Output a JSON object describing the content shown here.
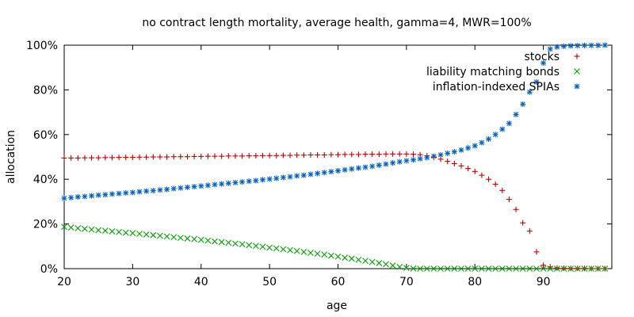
{
  "chart_data": {
    "type": "scatter",
    "title": "no contract length mortality, average health, gamma=4, MWR=100%",
    "xlabel": "age",
    "ylabel": "allocation",
    "xlim": [
      20,
      100
    ],
    "ylim": [
      0,
      100
    ],
    "x_ticks": [
      "20",
      "30",
      "40",
      "50",
      "60",
      "70",
      "80",
      "90"
    ],
    "y_ticks": [
      "0%",
      "20%",
      "40%",
      "60%",
      "80%",
      "100%"
    ],
    "grid": false,
    "legend_position": "top-right",
    "x": [
      20,
      21,
      22,
      23,
      24,
      25,
      26,
      27,
      28,
      29,
      30,
      31,
      32,
      33,
      34,
      35,
      36,
      37,
      38,
      39,
      40,
      41,
      42,
      43,
      44,
      45,
      46,
      47,
      48,
      49,
      50,
      51,
      52,
      53,
      54,
      55,
      56,
      57,
      58,
      59,
      60,
      61,
      62,
      63,
      64,
      65,
      66,
      67,
      68,
      69,
      70,
      71,
      72,
      73,
      74,
      75,
      76,
      77,
      78,
      79,
      80,
      81,
      82,
      83,
      84,
      85,
      86,
      87,
      88,
      89,
      90,
      91,
      92,
      93,
      94,
      95,
      96,
      97,
      98,
      99
    ],
    "series": [
      {
        "name": "stocks",
        "color": "#c00000",
        "marker": "plus",
        "values": [
          49.5,
          49.5,
          49.5,
          49.6,
          49.6,
          49.6,
          49.7,
          49.7,
          49.8,
          49.8,
          49.8,
          49.9,
          49.9,
          50.0,
          50.0,
          50.0,
          50.1,
          50.1,
          50.1,
          50.2,
          50.2,
          50.3,
          50.3,
          50.3,
          50.4,
          50.4,
          50.4,
          50.5,
          50.5,
          50.6,
          50.6,
          50.6,
          50.7,
          50.7,
          50.8,
          50.8,
          50.9,
          50.9,
          50.9,
          51.0,
          51.0,
          51.1,
          51.1,
          51.1,
          51.2,
          51.2,
          51.2,
          51.3,
          51.3,
          51.3,
          51.3,
          51.2,
          51.0,
          50.5,
          49.8,
          49.0,
          48.0,
          47.0,
          46.0,
          44.8,
          43.5,
          41.8,
          40.0,
          37.8,
          35.0,
          31.0,
          26.5,
          20.5,
          16.8,
          7.5,
          1.5,
          0.8,
          0.3,
          0.2,
          0.1,
          0.1,
          0.1,
          0,
          0,
          0
        ]
      },
      {
        "name": "liability matching bonds",
        "color": "#00a000",
        "marker": "cross",
        "values": [
          18.7,
          18.4,
          18.1,
          17.8,
          17.5,
          17.2,
          17.0,
          16.7,
          16.4,
          16.1,
          15.9,
          15.6,
          15.3,
          15.0,
          14.7,
          14.4,
          14.1,
          13.8,
          13.5,
          13.2,
          12.9,
          12.6,
          12.2,
          11.9,
          11.6,
          11.2,
          10.9,
          10.5,
          10.2,
          9.8,
          9.4,
          9.1,
          8.7,
          8.3,
          7.9,
          7.5,
          7.1,
          6.7,
          6.3,
          5.8,
          5.4,
          4.9,
          4.5,
          4.0,
          3.5,
          3.0,
          2.5,
          2.0,
          1.4,
          0.8,
          0.3,
          0.1,
          0,
          0,
          0,
          0,
          0,
          0,
          0,
          0,
          0,
          0,
          0,
          0,
          0,
          0,
          0,
          0,
          0,
          0,
          0,
          0,
          0,
          0,
          0,
          0,
          0,
          0,
          0,
          0
        ]
      },
      {
        "name": "inflation-indexed SPIAs",
        "color": "#0060c0",
        "marker": "star",
        "values": [
          31.5,
          31.8,
          32.1,
          32.3,
          32.6,
          32.9,
          33.1,
          33.4,
          33.6,
          33.9,
          34.1,
          34.4,
          34.7,
          34.9,
          35.2,
          35.5,
          35.8,
          36.1,
          36.4,
          36.7,
          37.0,
          37.3,
          37.6,
          37.9,
          38.2,
          38.5,
          38.8,
          39.1,
          39.4,
          39.8,
          40.1,
          40.4,
          40.8,
          41.1,
          41.5,
          41.8,
          42.2,
          42.6,
          43.0,
          43.4,
          43.8,
          44.2,
          44.6,
          45.0,
          45.4,
          45.8,
          46.3,
          46.8,
          47.3,
          47.8,
          48.3,
          48.7,
          49.2,
          49.7,
          50.3,
          50.9,
          51.6,
          52.3,
          53.1,
          54.0,
          55.0,
          56.4,
          58.0,
          60.0,
          62.4,
          65.0,
          69.0,
          73.6,
          79.0,
          83.5,
          92.0,
          98.3,
          99.2,
          99.5,
          99.7,
          99.8,
          99.9,
          99.9,
          99.9,
          100
        ]
      }
    ]
  }
}
